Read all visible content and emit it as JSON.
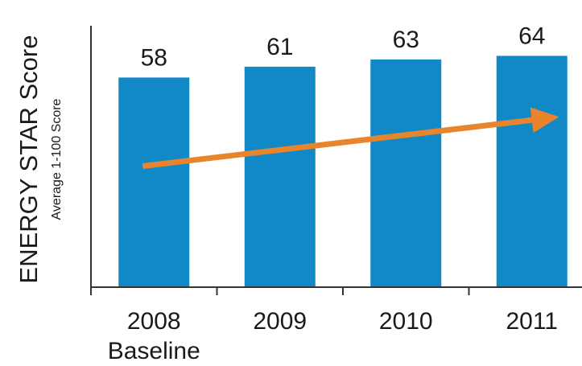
{
  "chart_data": {
    "type": "bar",
    "categories": [
      "2008",
      "2009",
      "2010",
      "2011"
    ],
    "category_sublabels": [
      "Baseline",
      "",
      "",
      ""
    ],
    "values": [
      58,
      61,
      63,
      64
    ],
    "data_labels": [
      "58",
      "61",
      "63",
      "64"
    ],
    "ylabel": "ENERGY STAR Score",
    "ylabel_sub": "Average 1-100 Score",
    "ylim": [
      0,
      75
    ],
    "grid": false,
    "bar_color": "#1289c7",
    "arrow_color": "#e8852c",
    "axis_color": "#333333",
    "trend_arrow": {
      "from_value": 33.5,
      "to_value": 46.5,
      "direction": "up-right"
    }
  }
}
